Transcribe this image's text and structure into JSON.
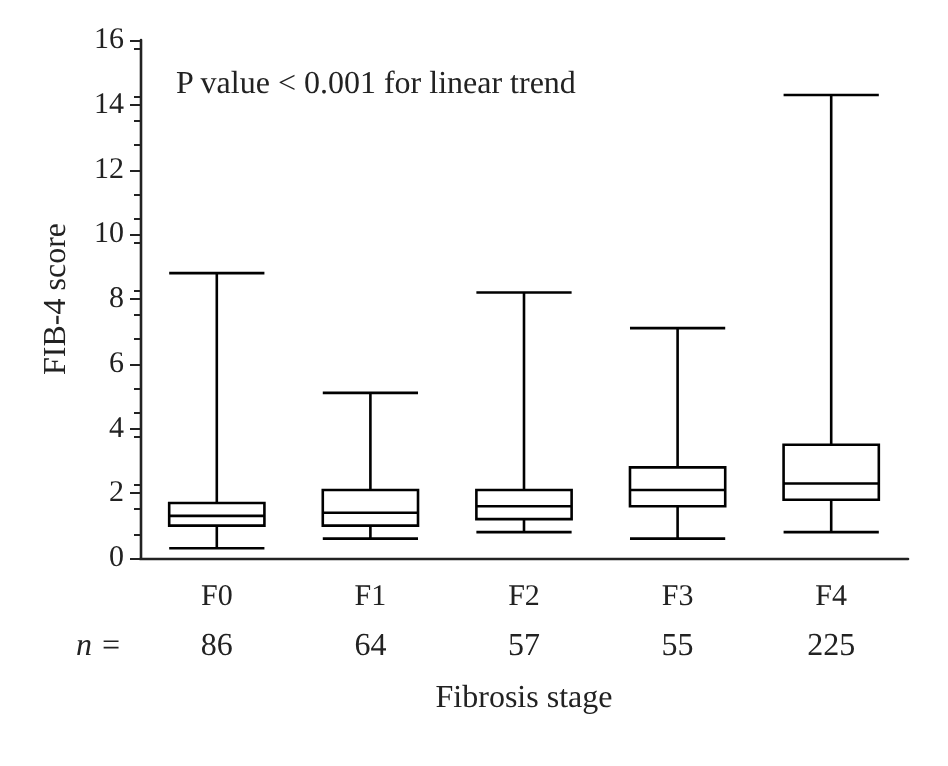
{
  "chart_data": {
    "type": "box",
    "xlabel": "Fibrosis stage",
    "ylabel": "FIB-4 score",
    "categories": [
      "F0",
      "F1",
      "F2",
      "F3",
      "F4"
    ],
    "boxes": [
      {
        "low": 0.3,
        "q1": 1.0,
        "median": 1.3,
        "q3": 1.7,
        "high": 8.8
      },
      {
        "low": 0.6,
        "q1": 1.0,
        "median": 1.4,
        "q3": 2.1,
        "high": 5.1
      },
      {
        "low": 0.8,
        "q1": 1.2,
        "median": 1.6,
        "q3": 2.1,
        "high": 8.2
      },
      {
        "low": 0.6,
        "q1": 1.6,
        "median": 2.1,
        "q3": 2.8,
        "high": 7.1
      },
      {
        "low": 0.8,
        "q1": 1.8,
        "median": 2.3,
        "q3": 3.5,
        "high": 14.3
      }
    ],
    "color": "#000000",
    "ylim": [
      0,
      16
    ],
    "yticks": [
      0,
      2,
      4,
      6,
      8,
      10,
      12,
      14,
      16
    ],
    "grid": false,
    "annotations": [
      "P value < 0.001 for linear trend",
      "n =",
      "86",
      "64",
      "57",
      "55",
      "225"
    ]
  }
}
